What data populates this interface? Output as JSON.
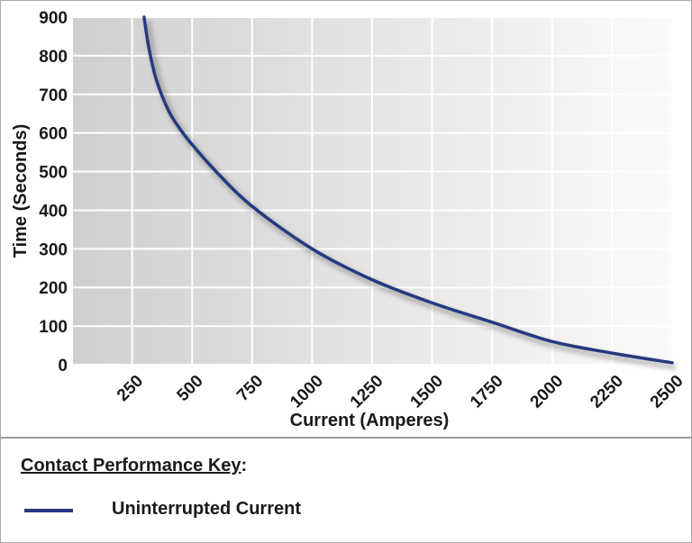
{
  "chart_data": {
    "type": "line",
    "xlabel": "Current (Amperes)",
    "ylabel": "Time (Seconds)",
    "xlim": [
      0,
      2500
    ],
    "ylim": [
      0,
      900
    ],
    "x_ticks": [
      "250",
      "500",
      "750",
      "1000",
      "1250",
      "1500",
      "1750",
      "2000",
      "2250",
      "2500"
    ],
    "y_ticks": [
      "0",
      "100",
      "200",
      "300",
      "400",
      "500",
      "600",
      "700",
      "800",
      "900"
    ],
    "grid": true,
    "series": [
      {
        "name": "Uninterrupted Current",
        "color": "#243a80",
        "x": [
          300,
          320,
          350,
          400,
          450,
          500,
          600,
          750,
          1000,
          1250,
          1500,
          1750,
          2000,
          2250,
          2500
        ],
        "y": [
          900,
          820,
          740,
          660,
          610,
          570,
          500,
          410,
          300,
          220,
          160,
          110,
          60,
          30,
          5
        ]
      }
    ]
  },
  "legend": {
    "title": "Contact Performance Key",
    "title_suffix": ":",
    "entries": [
      "Uninterrupted Current"
    ]
  }
}
